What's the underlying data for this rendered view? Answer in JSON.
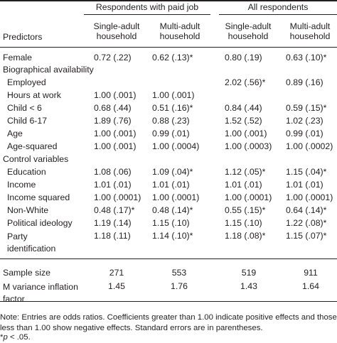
{
  "table": {
    "group_headers": [
      "Respondents with paid job",
      "All respondents"
    ],
    "predictors_label": "Predictors",
    "col_headers": [
      "Single-adult household",
      "Multi-adult household",
      "Single-adult household",
      "Multi-adult household"
    ],
    "rows": [
      {
        "label": "Female",
        "indent": 0,
        "cells": [
          "0.72 (.22)",
          "0.62 (.13)*",
          "0.80 (.19)",
          "0.63 (.10)*"
        ]
      },
      {
        "label": "Biographical availability",
        "indent": 0,
        "cells": [
          "",
          "",
          "",
          ""
        ]
      },
      {
        "label": "Employed",
        "indent": 1,
        "cells": [
          "",
          "",
          "2.02 (.56)*",
          "0.89 (.16)"
        ]
      },
      {
        "label": "Hours at work",
        "indent": 1,
        "cells": [
          "1.00 (.001)",
          "1.00 (.001)",
          "",
          ""
        ]
      },
      {
        "label": "Child < 6",
        "indent": 1,
        "cells": [
          "0.68 (.44)",
          "0.51 (.16)*",
          "0.84 (.44)",
          "0.59 (.15)*"
        ]
      },
      {
        "label": "Child 6-17",
        "indent": 1,
        "cells": [
          "1.89 (.76)",
          "0.88 (.23)",
          "1.52 (.52)",
          "1.02 (.23)"
        ]
      },
      {
        "label": "Age",
        "indent": 1,
        "cells": [
          "1.00 (.001)",
          "0.99 (.01)",
          "1.00 (.001)",
          "0.99 (.01)"
        ]
      },
      {
        "label": "Age-squared",
        "indent": 1,
        "cells": [
          "1.00 (.001)",
          "1.00 (.0004)",
          "1.00 (.0003)",
          "1.00 (.0002)"
        ]
      },
      {
        "label": "Control variables",
        "indent": 0,
        "cells": [
          "",
          "",
          "",
          ""
        ]
      },
      {
        "label": "Education",
        "indent": 1,
        "cells": [
          "1.08 (.06)",
          "1.09 (.04)*",
          "1.12 (.05)*",
          "1.15 (.04)*"
        ]
      },
      {
        "label": "Income",
        "indent": 1,
        "cells": [
          "1.01 (.01)",
          "1.01 (.01)",
          "1.01 (.01)",
          "1.01 (.01)"
        ]
      },
      {
        "label": "Income squared",
        "indent": 1,
        "cells": [
          "1.00 (.0001)",
          "1.00 (.0001)",
          "1.00 (.0001)",
          "1.00 (.0001)"
        ]
      },
      {
        "label": "Non-White",
        "indent": 1,
        "cells": [
          "0.48 (.17)*",
          "0.48 (.14)*",
          "0.55 (.15)*",
          "0.64 (.14)*"
        ]
      },
      {
        "label": "Political ideology",
        "indent": 1,
        "cells": [
          "1.19 (.14)",
          "1.15 (.10)",
          "1.15 (.10)",
          "1.22 (.08)*"
        ]
      },
      {
        "label": "Party identification",
        "indent": 1,
        "cells": [
          "1.18 (.11)",
          "1.14 (.10)*",
          "1.18 (.08)*",
          "1.15 (.07)*"
        ]
      }
    ],
    "bottom_rows": [
      {
        "label": "Sample size",
        "cells": [
          "271",
          "553",
          "519",
          "911"
        ]
      },
      {
        "label": "M variance inflation factor",
        "cells": [
          "1.45",
          "1.76",
          "1.43",
          "1.64"
        ]
      }
    ]
  },
  "note": {
    "text": "Note: Entries are odds ratios. Coefficients greater than 1.00 indicate positive effects and those less than 1.00 show negative effects. Standard errors are in parentheses.",
    "sig_prefix": "*",
    "sig_p": "p",
    "sig_suffix": " < .05."
  }
}
